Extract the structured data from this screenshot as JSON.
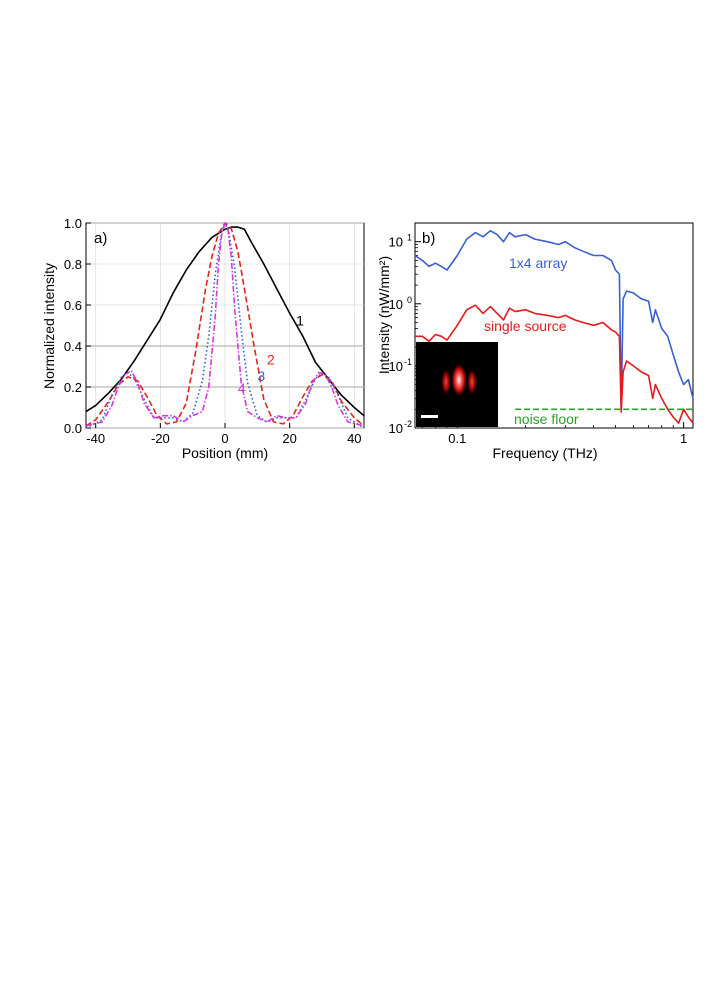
{
  "chart_data": [
    {
      "type": "line",
      "panel_label": "a)",
      "xlabel": "Position (mm)",
      "ylabel": "Normalized intensity",
      "xlim": [
        -43,
        43
      ],
      "ylim": [
        0,
        1.0
      ],
      "xticks": [
        -40,
        -20,
        0,
        20,
        40
      ],
      "yticks": [
        0.0,
        0.2,
        0.4,
        0.6,
        0.8,
        1.0
      ],
      "xtick_labels": [
        "-40",
        "-20",
        "0",
        "20",
        "40"
      ],
      "ytick_labels": [
        "0.0",
        "0.2",
        "0.4",
        "0.6",
        "0.8",
        "1.0"
      ],
      "grid": true,
      "series": [
        {
          "name": "1",
          "color": "#000000",
          "dash": "solid",
          "x": [
            -43,
            -40,
            -36,
            -32,
            -28,
            -24,
            -20,
            -16,
            -12,
            -8,
            -4,
            -2,
            0,
            2,
            4,
            6,
            8,
            12,
            16,
            20,
            24,
            28,
            32,
            36,
            40,
            43
          ],
          "y": [
            0.08,
            0.11,
            0.17,
            0.24,
            0.33,
            0.43,
            0.53,
            0.66,
            0.77,
            0.86,
            0.93,
            0.95,
            0.97,
            0.98,
            0.98,
            0.97,
            0.91,
            0.8,
            0.68,
            0.56,
            0.45,
            0.32,
            0.24,
            0.16,
            0.1,
            0.06
          ]
        },
        {
          "name": "2",
          "color": "#e3261c",
          "dash": "dashed",
          "x": [
            -43,
            -40,
            -36,
            -33,
            -30,
            -27,
            -24,
            -21,
            -18,
            -15,
            -12,
            -9,
            -6,
            -4,
            -2,
            0,
            1,
            2,
            4,
            6,
            9,
            12,
            15,
            18,
            21,
            24,
            27,
            30,
            33,
            36,
            40,
            43
          ],
          "y": [
            0.01,
            0.04,
            0.13,
            0.21,
            0.25,
            0.23,
            0.15,
            0.06,
            0.02,
            0.03,
            0.12,
            0.38,
            0.68,
            0.84,
            0.95,
            1.0,
            0.99,
            0.97,
            0.86,
            0.68,
            0.4,
            0.14,
            0.03,
            0.02,
            0.06,
            0.15,
            0.23,
            0.26,
            0.23,
            0.13,
            0.05,
            0.01
          ]
        },
        {
          "name": "3",
          "color": "#2e5fd8",
          "dash": "dotted",
          "x": [
            -43,
            -38,
            -35,
            -32,
            -30,
            -28,
            -25,
            -22,
            -19,
            -16,
            -13,
            -10,
            -7,
            -5,
            -3,
            -1,
            0,
            1,
            3,
            5,
            7,
            10,
            13,
            16,
            19,
            22,
            25,
            28,
            30,
            32,
            35,
            38,
            43
          ],
          "y": [
            0.0,
            0.04,
            0.16,
            0.25,
            0.27,
            0.24,
            0.14,
            0.05,
            0.05,
            0.05,
            0.03,
            0.07,
            0.23,
            0.45,
            0.75,
            0.96,
            1.0,
            0.97,
            0.78,
            0.48,
            0.22,
            0.06,
            0.03,
            0.05,
            0.05,
            0.05,
            0.14,
            0.24,
            0.27,
            0.25,
            0.16,
            0.05,
            0.0
          ]
        },
        {
          "name": "4",
          "color": "#d63ad6",
          "dash": "dashdot",
          "x": [
            -43,
            -38,
            -35,
            -33,
            -31,
            -29,
            -27,
            -25,
            -22,
            -19,
            -16,
            -13,
            -10,
            -7,
            -5,
            -3,
            -2,
            -1,
            0,
            1,
            2,
            3,
            5,
            7,
            10,
            13,
            16,
            19,
            22,
            25,
            27,
            29,
            31,
            33,
            35,
            38,
            43
          ],
          "y": [
            0.01,
            0.03,
            0.11,
            0.2,
            0.26,
            0.28,
            0.22,
            0.12,
            0.05,
            0.06,
            0.06,
            0.03,
            0.06,
            0.08,
            0.2,
            0.55,
            0.8,
            0.95,
            1.0,
            0.96,
            0.82,
            0.58,
            0.22,
            0.08,
            0.05,
            0.03,
            0.06,
            0.05,
            0.05,
            0.12,
            0.22,
            0.27,
            0.26,
            0.2,
            0.11,
            0.03,
            0.01
          ]
        }
      ],
      "annotations": [
        {
          "text": "1",
          "x": 22,
          "y": 0.5,
          "color": "#000000"
        },
        {
          "text": "2",
          "x": 13,
          "y": 0.31,
          "color": "#e3261c"
        },
        {
          "text": "3",
          "x": 10,
          "y": 0.23,
          "color": "#2e5fd8"
        },
        {
          "text": "4",
          "x": 4,
          "y": 0.17,
          "color": "#d63ad6"
        }
      ]
    },
    {
      "type": "line",
      "panel_label": "b)",
      "xlabel": "Frequency (THz)",
      "ylabel": "Intensity (nW/mm²)",
      "x_scale": "log",
      "y_scale": "log",
      "xlim": [
        0.065,
        1.1
      ],
      "ylim": [
        0.01,
        20
      ],
      "xticks": [
        0.1,
        1
      ],
      "xtick_labels": [
        "0.1",
        "1"
      ],
      "yticks": [
        0.01,
        0.1,
        1,
        10
      ],
      "ytick_labels": [
        {
          "base": "10",
          "exp": "-2"
        },
        {
          "base": "10",
          "exp": "-1"
        },
        {
          "base": "10",
          "exp": "0"
        },
        {
          "base": "10",
          "exp": "1"
        }
      ],
      "series": [
        {
          "name": "1x4 array",
          "color": "#3a5fd0",
          "dash": "solid",
          "x": [
            0.065,
            0.07,
            0.075,
            0.08,
            0.085,
            0.09,
            0.1,
            0.11,
            0.12,
            0.13,
            0.14,
            0.15,
            0.16,
            0.17,
            0.18,
            0.2,
            0.22,
            0.25,
            0.28,
            0.3,
            0.33,
            0.36,
            0.4,
            0.44,
            0.48,
            0.5,
            0.52,
            0.53,
            0.54,
            0.56,
            0.6,
            0.65,
            0.7,
            0.73,
            0.75,
            0.8,
            0.85,
            0.9,
            0.95,
            1.0,
            1.05,
            1.1
          ],
          "y": [
            6,
            5,
            4,
            4.5,
            4,
            3.5,
            6,
            11,
            14,
            12,
            15,
            13,
            10,
            14,
            12,
            13,
            11,
            10,
            9,
            10,
            8,
            7,
            6,
            6,
            5,
            3.5,
            3,
            0.02,
            1.2,
            1.6,
            1.5,
            1.2,
            1.1,
            0.5,
            0.8,
            0.4,
            0.3,
            0.15,
            0.08,
            0.05,
            0.06,
            0.03
          ]
        },
        {
          "name": "single source",
          "color": "#e31a1c",
          "dash": "solid",
          "x": [
            0.065,
            0.07,
            0.075,
            0.08,
            0.085,
            0.09,
            0.1,
            0.11,
            0.12,
            0.13,
            0.14,
            0.15,
            0.16,
            0.17,
            0.18,
            0.2,
            0.22,
            0.25,
            0.28,
            0.3,
            0.33,
            0.36,
            0.4,
            0.44,
            0.48,
            0.5,
            0.52,
            0.53,
            0.54,
            0.56,
            0.6,
            0.65,
            0.7,
            0.73,
            0.75,
            0.8,
            0.85,
            0.9,
            0.95,
            1.0,
            1.05,
            1.1
          ],
          "y": [
            0.3,
            0.3,
            0.25,
            0.32,
            0.3,
            0.26,
            0.45,
            0.8,
            0.95,
            0.7,
            0.9,
            0.7,
            0.55,
            0.85,
            0.75,
            0.8,
            0.7,
            0.65,
            0.6,
            0.65,
            0.55,
            0.5,
            0.45,
            0.5,
            0.38,
            0.35,
            0.3,
            0.018,
            0.08,
            0.12,
            0.1,
            0.08,
            0.07,
            0.03,
            0.05,
            0.03,
            0.02,
            0.015,
            0.012,
            0.02,
            0.015,
            0.012
          ]
        },
        {
          "name": "noise floor",
          "color": "#2ca02c",
          "dash": "dashed",
          "x": [
            0.18,
            1.1
          ],
          "y": [
            0.02,
            0.02
          ]
        }
      ],
      "annotations": [
        {
          "text": "1x4 array",
          "color": "#3a5fd0"
        },
        {
          "text": "single source",
          "color": "#e31a1c"
        },
        {
          "text": "noise floor",
          "color": "#2ca02c"
        }
      ],
      "inset": "beam profile image with scale bar"
    }
  ]
}
